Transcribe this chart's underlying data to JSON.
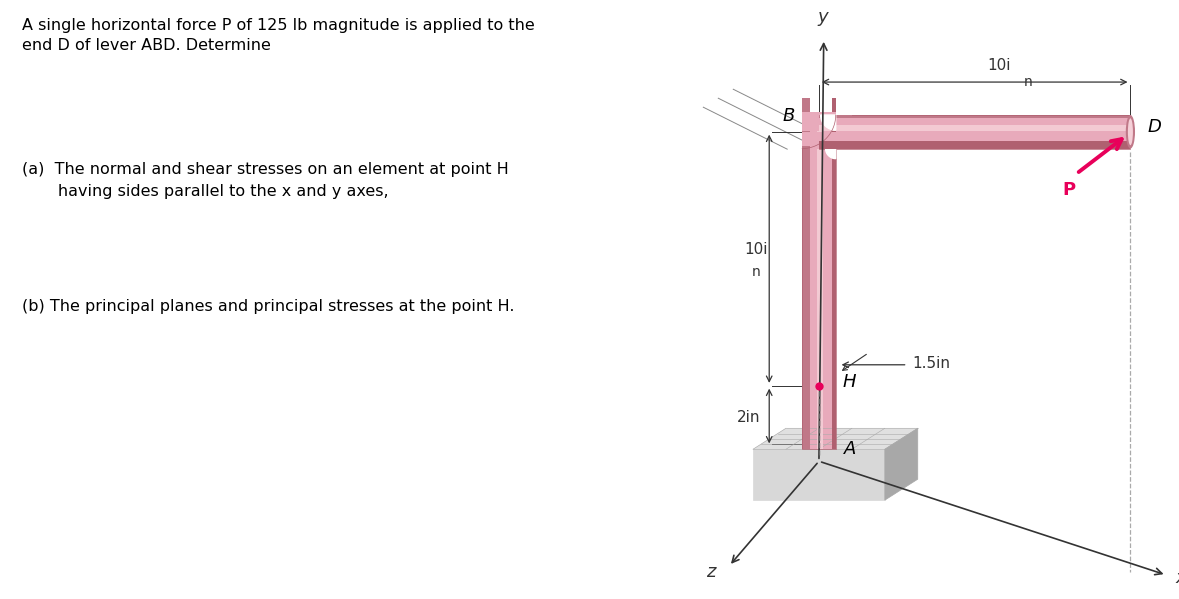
{
  "title_text": "A single horizontal force P of 125 lb magnitude is applied to the\nend D of lever ABD. Determine",
  "part_a": "(a)  The normal and shear stresses on an element at point H\n       having sides parallel to the x and y axes,",
  "part_b": "(b) The principal planes and principal stresses at the point H.",
  "pipe_color": "#e8aabb",
  "pipe_highlight": "#f5d0d8",
  "pipe_shadow": "#c07888",
  "pipe_dark": "#b06070",
  "arrow_color": "#e8005a",
  "dim_color": "#333333",
  "axis_color": "#333333",
  "base_light": "#d8d8d8",
  "base_mid": "#c0c0c0",
  "base_dark": "#a8a8a8",
  "H_dot_color": "#e8005a",
  "label_fontsize": 11,
  "dashed_color": "#666666"
}
